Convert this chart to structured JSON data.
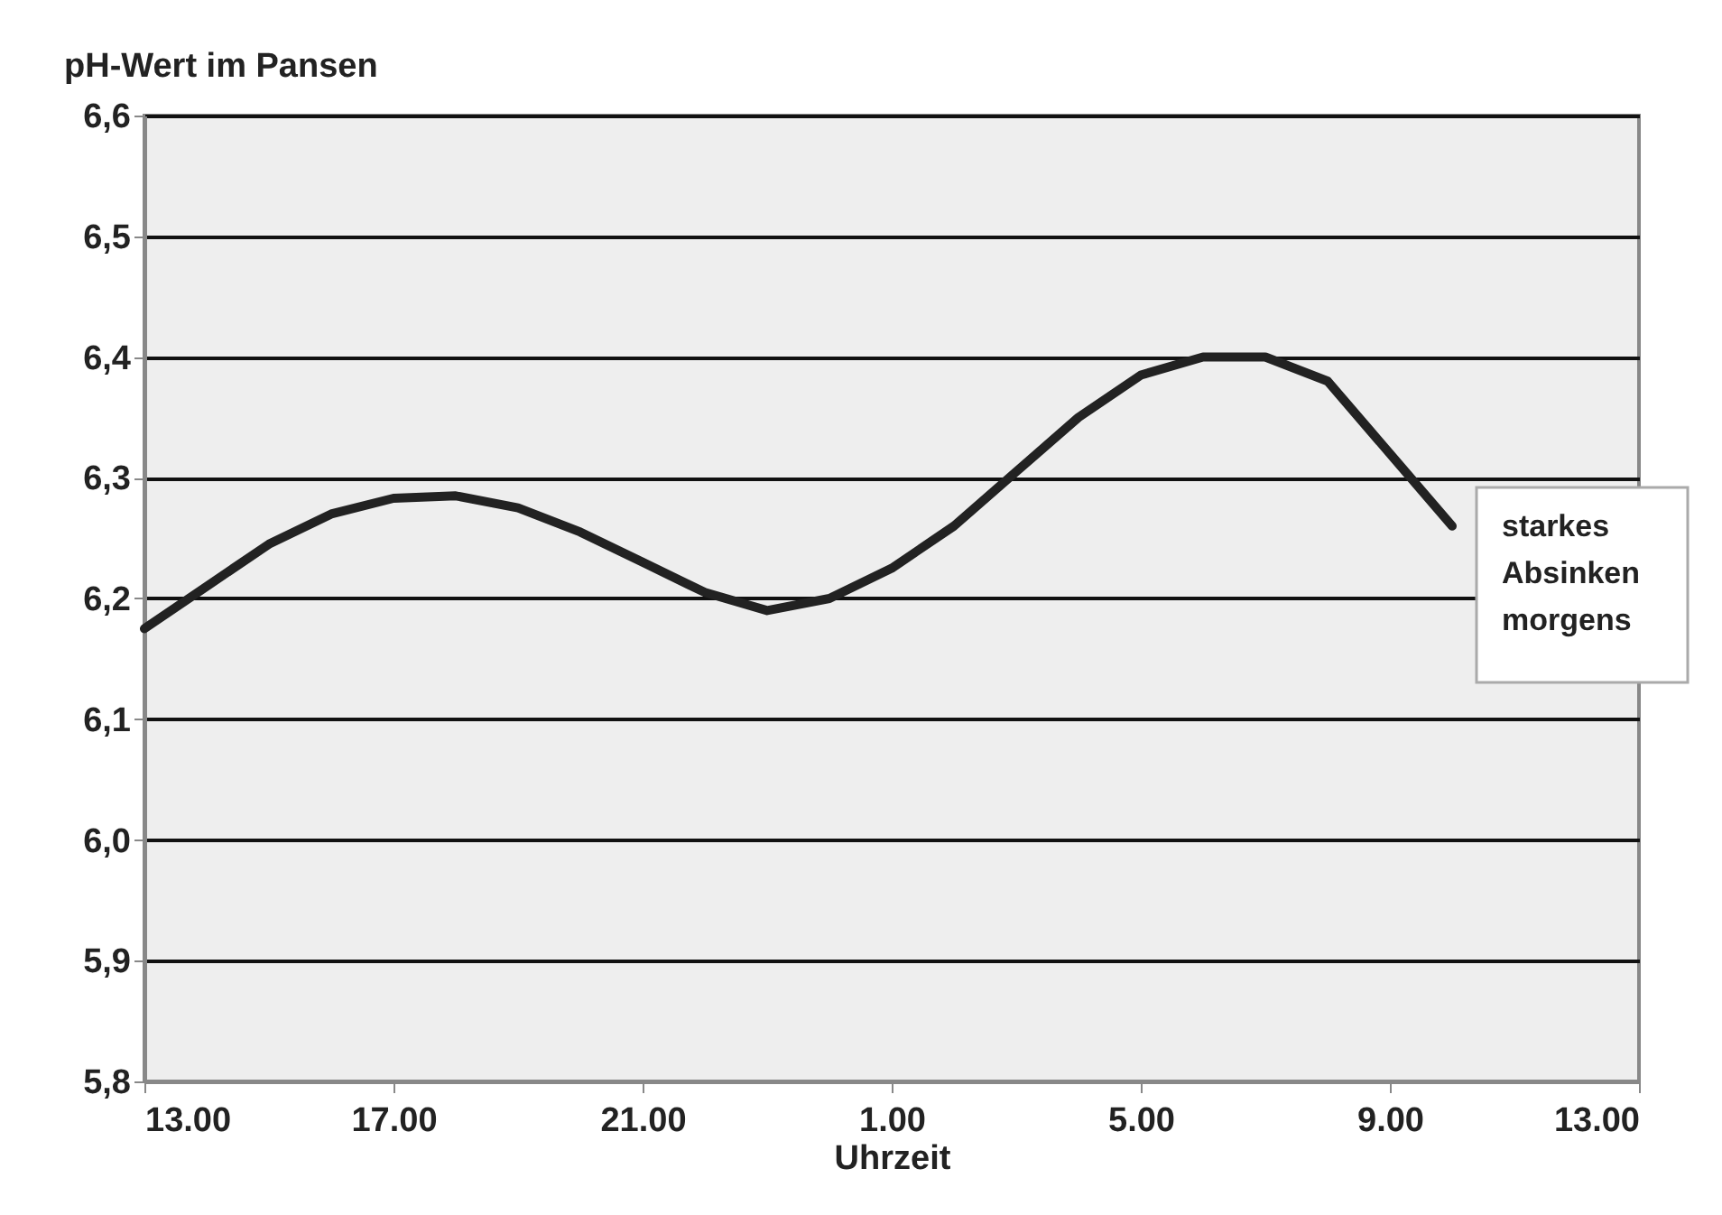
{
  "chart_data": {
    "type": "line",
    "ylabel": "pH-Wert im Pansen",
    "xlabel": "Uhrzeit",
    "x": [
      "2000-01-01T13:00",
      "2000-01-01T14:00",
      "2000-01-01T15:00",
      "2000-01-01T16:00",
      "2000-01-01T17:00",
      "2000-01-01T18:00",
      "2000-01-01T19:00",
      "2000-01-01T20:00",
      "2000-01-01T21:00",
      "2000-01-01T22:00",
      "2000-01-01T23:00",
      "2000-01-02T00:00",
      "2000-01-02T01:00",
      "2000-01-02T02:00",
      "2000-01-02T03:00",
      "2000-01-02T04:00",
      "2000-01-02T05:00",
      "2000-01-02T06:00",
      "2000-01-02T07:00",
      "2000-01-02T08:00",
      "2000-01-02T09:00",
      "2000-01-02T10:00"
    ],
    "series": [
      {
        "color": "#222222",
        "values": [
          6.175,
          6.21,
          6.245,
          6.27,
          6.283,
          6.285,
          6.275,
          6.255,
          6.23,
          6.205,
          6.19,
          6.2,
          6.225,
          6.26,
          6.305,
          6.35,
          6.385,
          6.4,
          6.4,
          6.38,
          6.32,
          6.26
        ]
      }
    ],
    "xlim": [
      "2000-01-01T13:00",
      "2000-01-02T13:00"
    ],
    "xticks": [
      {
        "value": "2000-01-01T13:00",
        "label": "13.00"
      },
      {
        "value": "2000-01-01T17:00",
        "label": "17.00"
      },
      {
        "value": "2000-01-01T21:00",
        "label": "21.00"
      },
      {
        "value": "2000-01-02T01:00",
        "label": "1.00"
      },
      {
        "value": "2000-01-02T05:00",
        "label": "5.00"
      },
      {
        "value": "2000-01-02T09:00",
        "label": "9.00"
      },
      {
        "value": "2000-01-02T13:00",
        "label": "13.00"
      }
    ],
    "ylim": [
      5.8,
      6.6
    ],
    "yticks": [
      {
        "value": 5.8,
        "label": "5,8"
      },
      {
        "value": 5.9,
        "label": "5,9"
      },
      {
        "value": 6.0,
        "label": "6,0"
      },
      {
        "value": 6.1,
        "label": "6,1"
      },
      {
        "value": 6.2,
        "label": "6,2"
      },
      {
        "value": 6.3,
        "label": "6,3"
      },
      {
        "value": 6.4,
        "label": "6,4"
      },
      {
        "value": 6.5,
        "label": "6,5"
      },
      {
        "value": 6.6,
        "label": "6,6"
      }
    ],
    "grid": "y",
    "marker": "none",
    "line_style": "solid",
    "annotations": [
      "starkes Absinken morgens"
    ]
  }
}
